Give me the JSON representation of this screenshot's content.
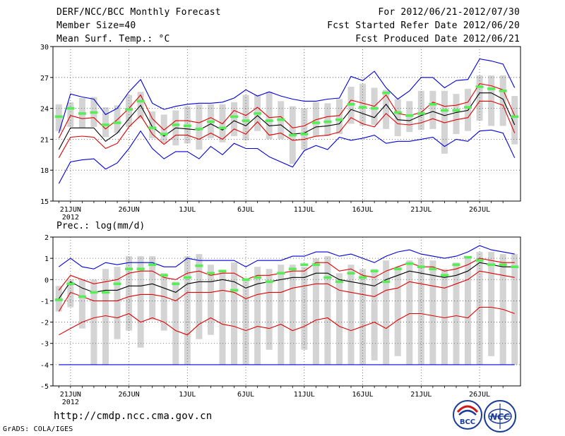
{
  "header": {
    "title": "DERF/NCC/BCC Monthly Forecast",
    "member": "Member Size=40",
    "variable": "Mean Surf. Temp.: °C",
    "period": "For 2012/06/21-2012/07/30",
    "start": "Fcst Started Refer Date 2012/06/20",
    "produced": "Fcst Produced Date 2012/06/21"
  },
  "footer": {
    "url": "http://cmdp.ncc.cma.gov.cn",
    "grads": "GrADS: COLA/IGES",
    "logo1_text": "BCC",
    "logo2_text": "NCC"
  },
  "colors": {
    "envelope": "#0000dd",
    "pct": "#e00000",
    "mean": "#000000",
    "bars": "#d4d4d4",
    "marks": "#55ee55",
    "grid": "#555555"
  },
  "chart_data": [
    {
      "name": "temperature",
      "type": "line",
      "title": "Mean Surf. Temp.: °C",
      "ylim": [
        15,
        30
      ],
      "yticks": [
        15,
        18,
        21,
        24,
        27,
        30
      ],
      "x_tick_labels": [
        "21JUN",
        "26JUN",
        "1JUL",
        "6JUL",
        "11JUL",
        "16JUL",
        "21JUL",
        "26JUL"
      ],
      "x_tick_days": [
        1,
        6,
        11,
        16,
        21,
        26,
        31,
        36
      ],
      "x_sublabel": "2012",
      "days": 39,
      "series": [
        {
          "name": "max",
          "role": "envelope",
          "values": [
            16.7,
            18.8,
            19.0,
            19.1,
            18.1,
            18.7,
            20.1,
            21.8,
            20.1,
            19.1,
            19.8,
            19.8,
            19.1,
            20.3,
            19.5,
            20.6,
            20.1,
            20.1,
            19.3,
            18.8,
            18.3,
            19.9,
            20.4,
            20.0,
            21.2,
            20.9,
            21.1,
            21.4,
            20.6,
            20.8,
            20.8,
            21.0,
            21.2,
            20.3,
            21.0,
            20.8,
            21.8,
            21.9,
            21.6,
            19.2
          ]
        },
        {
          "name": "min",
          "role": "envelope",
          "values": [
            21.6,
            25.4,
            25.1,
            24.9,
            23.4,
            24.0,
            25.6,
            26.8,
            24.5,
            23.9,
            24.2,
            24.4,
            24.5,
            24.5,
            24.6,
            25.0,
            25.8,
            25.2,
            25.6,
            25.2,
            24.9,
            24.7,
            24.7,
            24.9,
            25.0,
            27.1,
            26.7,
            27.6,
            26.0,
            24.9,
            25.7,
            27.0,
            27.0,
            26.0,
            26.7,
            26.8,
            28.8,
            28.6,
            28.3,
            26.0
          ],
          "fix": true
        },
        {
          "name": "p90",
          "role": "pct",
          "values": [
            21.1,
            23.3,
            23.0,
            23.1,
            22.0,
            22.9,
            24.0,
            25.3,
            23.0,
            21.9,
            22.8,
            22.8,
            22.6,
            23.1,
            22.5,
            23.8,
            23.3,
            24.1,
            23.1,
            23.2,
            22.1,
            22.3,
            22.9,
            23.2,
            23.3,
            24.8,
            24.5,
            24.2,
            25.3,
            23.5,
            23.3,
            23.6,
            24.6,
            24.2,
            24.3,
            24.6,
            26.4,
            26.2,
            25.8,
            23.3
          ]
        },
        {
          "name": "p10",
          "role": "pct",
          "values": [
            19.2,
            21.2,
            21.3,
            21.2,
            20.1,
            20.6,
            22.2,
            23.3,
            21.5,
            20.5,
            21.4,
            21.4,
            21.0,
            21.6,
            21.0,
            22.0,
            21.5,
            22.7,
            21.4,
            21.6,
            20.9,
            21.0,
            21.3,
            21.4,
            21.7,
            23.1,
            22.5,
            22.2,
            23.5,
            22.5,
            22.4,
            22.6,
            23.0,
            22.6,
            22.9,
            23.1,
            24.7,
            24.7,
            24.3,
            21.6
          ]
        },
        {
          "name": "mean",
          "role": "mean",
          "values": [
            20.0,
            22.1,
            22.1,
            22.1,
            20.8,
            21.6,
            23.0,
            24.3,
            22.2,
            21.3,
            22.1,
            22.0,
            21.9,
            22.5,
            21.9,
            22.8,
            22.3,
            23.3,
            22.3,
            22.4,
            21.5,
            21.6,
            22.2,
            22.3,
            22.5,
            23.9,
            23.5,
            23.1,
            24.4,
            22.9,
            22.8,
            23.3,
            23.7,
            23.3,
            23.6,
            23.8,
            25.5,
            25.5,
            24.9,
            22.4
          ]
        },
        {
          "name": "bar_low",
          "role": "bar",
          "values": [
            21.8,
            22.2,
            22.1,
            22.2,
            21.2,
            21.6,
            22.2,
            23.0,
            21.1,
            20.6,
            20.4,
            20.6,
            20.0,
            21.1,
            20.7,
            21.3,
            20.9,
            21.8,
            21.0,
            21.0,
            18.6,
            20.0,
            21.2,
            21.3,
            21.5,
            22.5,
            22.3,
            22.4,
            22.0,
            21.3,
            21.7,
            21.9,
            22.0,
            19.6,
            21.5,
            21.8,
            22.8,
            22.3,
            22.3,
            20.5
          ]
        },
        {
          "name": "bar_high",
          "role": "bar",
          "values": [
            24.4,
            24.6,
            25.0,
            25.1,
            24.1,
            24.3,
            25.3,
            25.6,
            23.7,
            23.4,
            23.8,
            24.2,
            24.4,
            24.4,
            24.4,
            24.6,
            25.3,
            25.3,
            25.6,
            24.7,
            24.2,
            24.0,
            24.6,
            24.5,
            24.9,
            26.1,
            26.4,
            26.0,
            25.8,
            24.9,
            24.7,
            25.7,
            25.7,
            25.7,
            25.4,
            25.9,
            27.2,
            27.2,
            27.2,
            25.2
          ]
        },
        {
          "name": "observed",
          "role": "mark",
          "values": [
            23.2,
            24.0,
            23.5,
            23.6,
            22.4,
            22.6,
            23.9,
            24.7,
            22.1,
            21.5,
            22.4,
            22.3,
            22.0,
            22.7,
            22.1,
            23.2,
            22.8,
            23.5,
            22.8,
            22.9,
            21.4,
            21.5,
            22.6,
            22.7,
            22.9,
            24.4,
            24.1,
            24.0,
            25.5,
            23.6,
            23.3,
            23.5,
            24.4,
            23.8,
            23.8,
            24.1,
            26.1,
            25.9,
            25.7,
            23.2
          ]
        }
      ]
    },
    {
      "name": "precipitation",
      "type": "line",
      "title": "Prec.: log(mm/d)",
      "ylim": [
        -5,
        2
      ],
      "yticks": [
        -5,
        -4,
        -3,
        -2,
        -1,
        0,
        1,
        2
      ],
      "x_tick_labels": [
        "21JUN",
        "26JUN",
        "1JUL",
        "6JUL",
        "11JUL",
        "16JUL",
        "21JUL",
        "26JUL"
      ],
      "x_tick_days": [
        1,
        6,
        11,
        16,
        21,
        26,
        31,
        36
      ],
      "x_sublabel": "2012",
      "days": 39,
      "series": [
        {
          "name": "max",
          "role": "envelope",
          "values": [
            0.6,
            1.0,
            0.6,
            0.5,
            0.8,
            0.7,
            0.8,
            0.8,
            0.8,
            0.6,
            0.6,
            1.0,
            0.9,
            0.9,
            0.9,
            0.9,
            0.6,
            0.9,
            0.9,
            0.9,
            1.1,
            1.1,
            1.3,
            1.3,
            1.1,
            1.2,
            1.0,
            0.8,
            1.1,
            1.3,
            1.4,
            1.2,
            1.1,
            1.0,
            1.1,
            1.3,
            1.6,
            1.4,
            1.3,
            1.2
          ]
        },
        {
          "name": "min",
          "role": "envelope",
          "values": [
            -4.0,
            -4.0,
            -4.0,
            -4.0,
            -4.0,
            -4.0,
            -4.0,
            -4.0,
            -4.0,
            -4.0,
            -4.0,
            -4.0,
            -4.0,
            -4.0,
            -4.0,
            -4.0,
            -4.0,
            -4.0,
            -4.0,
            -4.0,
            -4.0,
            -4.0,
            -4.0,
            -4.0,
            -4.0,
            -4.0,
            -4.0,
            -4.0,
            -4.0,
            -4.0,
            -4.0,
            -4.0,
            -4.0,
            -4.0,
            -4.0,
            -4.0,
            -4.0,
            -4.0,
            -4.0,
            -4.0
          ]
        },
        {
          "name": "p90",
          "role": "pct",
          "values": [
            -0.5,
            0.2,
            0.0,
            -0.2,
            -0.1,
            0.0,
            0.3,
            0.4,
            0.4,
            0.1,
            0.0,
            0.3,
            0.4,
            0.2,
            0.3,
            0.3,
            0.0,
            0.2,
            0.2,
            0.3,
            0.4,
            0.4,
            0.8,
            0.8,
            0.4,
            0.5,
            0.2,
            0.1,
            0.4,
            0.6,
            0.8,
            0.6,
            0.6,
            0.4,
            0.5,
            0.7,
            1.0,
            0.9,
            0.8,
            0.8
          ]
        },
        {
          "name": "p10",
          "role": "pct",
          "values": [
            -2.6,
            -2.3,
            -2.0,
            -1.8,
            -1.7,
            -1.8,
            -1.6,
            -2.0,
            -1.8,
            -2.0,
            -2.4,
            -2.6,
            -2.1,
            -1.8,
            -2.1,
            -2.2,
            -2.4,
            -2.2,
            -2.3,
            -2.1,
            -2.4,
            -2.2,
            -1.9,
            -1.8,
            -2.2,
            -2.4,
            -2.2,
            -2.0,
            -2.3,
            -1.9,
            -1.6,
            -1.6,
            -1.7,
            -1.8,
            -1.7,
            -1.8,
            -1.3,
            -1.3,
            -1.4,
            -1.6
          ]
        },
        {
          "name": "p50",
          "role": "pct",
          "values": [
            -1.5,
            -0.6,
            -0.8,
            -1.0,
            -1.0,
            -1.0,
            -0.8,
            -0.7,
            -0.7,
            -0.8,
            -1.0,
            -0.6,
            -0.6,
            -0.6,
            -0.5,
            -0.6,
            -0.9,
            -0.7,
            -0.6,
            -0.6,
            -0.4,
            -0.3,
            -0.2,
            -0.2,
            -0.5,
            -0.6,
            -0.7,
            -0.8,
            -0.5,
            -0.4,
            -0.1,
            -0.2,
            -0.3,
            -0.4,
            -0.2,
            0.0,
            0.4,
            0.3,
            0.2,
            0.1
          ]
        },
        {
          "name": "mean",
          "role": "mean",
          "values": [
            -0.9,
            -0.1,
            -0.4,
            -0.6,
            -0.5,
            -0.5,
            -0.3,
            -0.3,
            -0.2,
            -0.4,
            -0.6,
            -0.2,
            -0.1,
            -0.1,
            0.0,
            -0.1,
            -0.4,
            -0.2,
            -0.1,
            0.0,
            0.1,
            0.1,
            0.3,
            0.3,
            0.0,
            -0.1,
            -0.2,
            -0.3,
            0.0,
            0.2,
            0.4,
            0.3,
            0.2,
            0.1,
            0.2,
            0.4,
            0.8,
            0.7,
            0.6,
            0.6
          ]
        },
        {
          "name": "bar_low",
          "role": "bar",
          "values": [
            -1.5,
            -1.3,
            -2.3,
            -4.0,
            -4.0,
            -2.8,
            -2.4,
            -3.2,
            -1.9,
            -2.4,
            -4.0,
            -4.0,
            -2.8,
            -2.6,
            -4.0,
            -4.0,
            -4.0,
            -4.0,
            -3.3,
            -4.0,
            -4.0,
            -3.3,
            -4.0,
            -4.0,
            -4.0,
            -4.0,
            -4.0,
            -3.8,
            -4.0,
            -3.6,
            -4.0,
            -4.0,
            -4.0,
            -4.0,
            -4.0,
            -4.0,
            -4.0,
            -3.6,
            -4.0,
            -4.0
          ]
        },
        {
          "name": "bar_high",
          "role": "bar",
          "values": [
            -0.3,
            0.0,
            0.0,
            0.0,
            0.5,
            0.6,
            1.1,
            1.1,
            1.1,
            0.3,
            -0.1,
            1.1,
            1.2,
            0.7,
            0.4,
            0.8,
            0.0,
            0.6,
            0.5,
            0.7,
            0.7,
            0.6,
            1.0,
            1.1,
            0.3,
            0.7,
            0.5,
            0.5,
            0.9,
            0.6,
            0.9,
            1.0,
            0.9,
            0.5,
            0.8,
            1.0,
            1.3,
            1.3,
            1.2,
            1.2
          ]
        },
        {
          "name": "observed",
          "role": "mark",
          "values": [
            -0.95,
            -0.2,
            -0.8,
            -0.6,
            -0.6,
            -0.2,
            0.5,
            0.5,
            0.7,
            0.2,
            -0.2,
            0.1,
            0.65,
            0.3,
            0.4,
            -0.5,
            0.0,
            0.1,
            -0.1,
            0.3,
            0.5,
            0.7,
            0.7,
            0.1,
            -0.1,
            0.3,
            0.1,
            0.4,
            -0.1,
            0.5,
            0.75,
            0.6,
            0.5,
            0.2,
            0.7,
            1.05,
            0.9,
            0.7,
            0.7,
            0.6
          ]
        }
      ]
    }
  ]
}
